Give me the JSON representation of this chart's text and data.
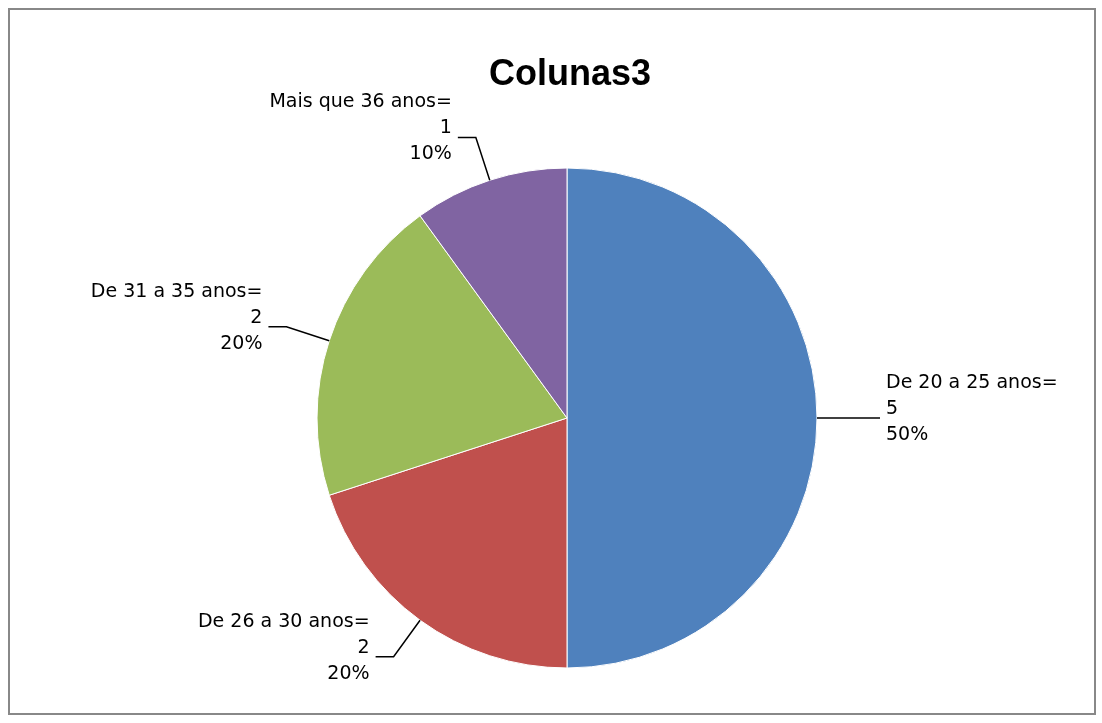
{
  "chart_data": {
    "type": "pie",
    "title": "Colunas3",
    "categories": [
      "De 20 a 25 anos=",
      "De 26 a 30 anos=",
      "De 31 a 35 anos=",
      "Mais que 36 anos="
    ],
    "values": [
      5,
      2,
      2,
      1
    ],
    "colors": [
      "#4f81bd",
      "#c0504d",
      "#9bbb59",
      "#8064a2"
    ],
    "value_labels": [
      "5\n50%",
      "2\n20%",
      "2\n20%",
      "1\n10%"
    ]
  }
}
